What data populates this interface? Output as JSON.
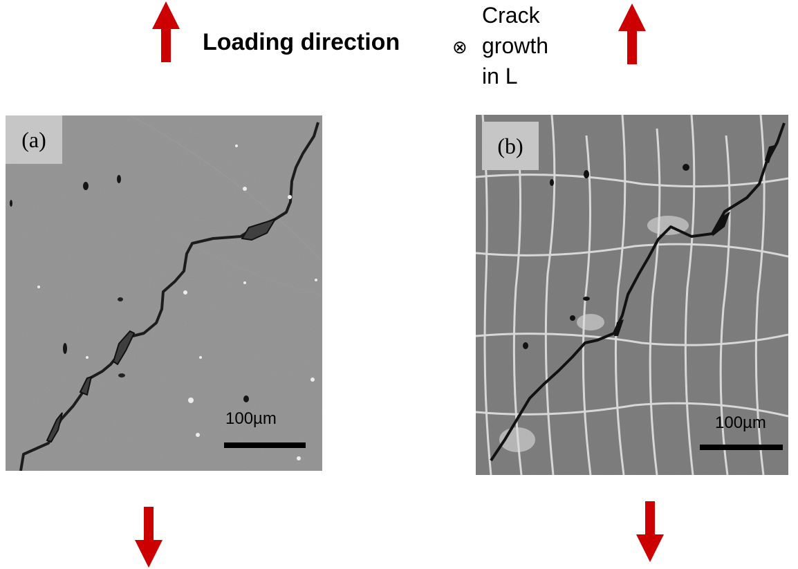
{
  "legend": {
    "loading_label": "Loading direction",
    "crack_symbol": "⊗",
    "crack_lines": [
      "Crack",
      "growth",
      "in L"
    ]
  },
  "colors": {
    "arrow": "#cc0000",
    "micrograph_a_bg": "#8f8f8f",
    "micrograph_b_bg": "#7d7d7d",
    "label_box": "#c6c6c6"
  },
  "panels": [
    {
      "tag": "(a)",
      "scalebar_label": "100µm"
    },
    {
      "tag": "(b)",
      "scalebar_label": "100µm"
    }
  ]
}
